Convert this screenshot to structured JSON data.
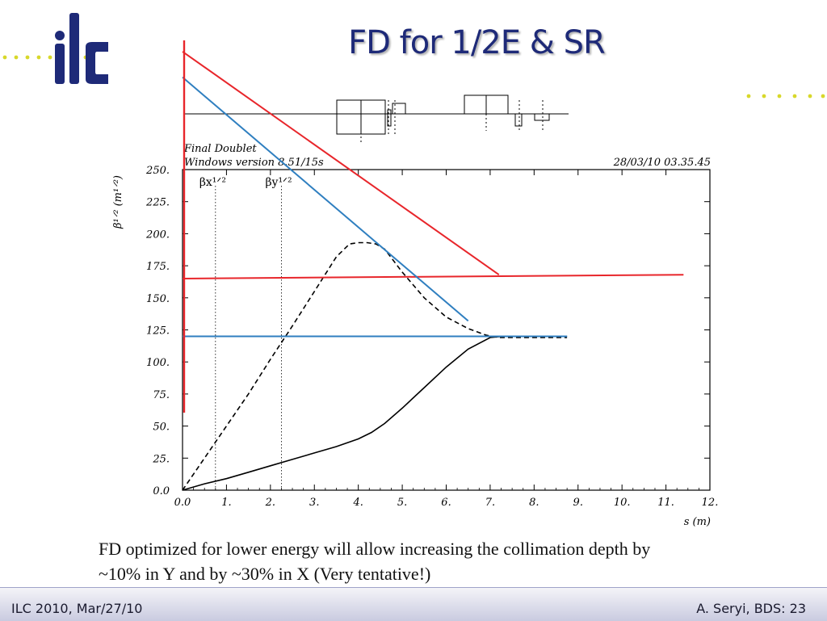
{
  "slide": {
    "title": "FD for 1/2E & SR",
    "caption_line1": "FD optimized for lower energy will allow increasing the collimation depth by",
    "caption_line2": "~10% in Y and by ~30% in X  (Very tentative!)",
    "footer_left": "ILC 2010, Mar/27/10",
    "footer_right": "A. Seryi, BDS: 23",
    "logo_text": "ilc",
    "colors": {
      "title": "#1e2a78",
      "red": "#e8262b",
      "blue": "#2f7fc0",
      "dots": "#d8d82a"
    }
  },
  "chart_data": {
    "type": "line",
    "header_left_line1": "Final Doublet",
    "header_left_line2": "Windows version 8.51/15s",
    "header_right": "28/03/10  03.35.45",
    "xlabel": "s (m)",
    "ylabel": "β¹ᐟ² (m¹ᐟ²)",
    "xlim": [
      0,
      12
    ],
    "ylim": [
      0,
      250
    ],
    "xticks": [
      0,
      1,
      2,
      3,
      4,
      5,
      6,
      7,
      8,
      9,
      10,
      11,
      12
    ],
    "xtick_labels": [
      "0.0",
      "1.",
      "2.",
      "3.",
      "4.",
      "5.",
      "6.",
      "7.",
      "8.",
      "9.",
      "10.",
      "11.",
      "12."
    ],
    "yticks": [
      0,
      25,
      50,
      75,
      100,
      125,
      150,
      175,
      200,
      225,
      250
    ],
    "ytick_labels": [
      "0.0",
      "25.",
      "50.",
      "75.",
      "100.",
      "125.",
      "150.",
      "175.",
      "200.",
      "225.",
      "250."
    ],
    "markers": [
      {
        "label": "βx¹ᐟ²",
        "x": 0.75
      },
      {
        "label": "βy¹ᐟ²",
        "x": 2.25
      }
    ],
    "series": [
      {
        "name": "βx¹ᐟ²",
        "style": "solid",
        "x": [
          0,
          0.5,
          1,
          1.5,
          2,
          2.5,
          3,
          3.5,
          4,
          4.3,
          4.6,
          5,
          5.5,
          6,
          6.5,
          7,
          7.3,
          8,
          8.75
        ],
        "values": [
          0,
          5,
          9,
          14,
          19,
          24,
          29,
          34,
          40,
          45,
          52,
          64,
          80,
          96,
          110,
          119,
          120,
          120,
          120
        ]
      },
      {
        "name": "βy¹ᐟ²",
        "style": "dashed",
        "x": [
          0,
          0.5,
          1,
          1.5,
          2,
          2.5,
          3,
          3.5,
          3.8,
          4,
          4.2,
          4.4,
          4.6,
          5,
          5.5,
          6,
          6.5,
          6.9,
          7.2,
          8,
          8.75
        ],
        "values": [
          0,
          25,
          50,
          75,
          102,
          128,
          155,
          182,
          192,
          193,
          193,
          192,
          188,
          170,
          150,
          135,
          126,
          121,
          119,
          119,
          119
        ]
      }
    ],
    "overlay_lines": [
      {
        "color": "red",
        "x": [
          0,
          7.2
        ],
        "values": [
          342,
          168
        ]
      },
      {
        "color": "red",
        "x": [
          0,
          11.4
        ],
        "values": [
          165,
          168
        ]
      },
      {
        "color": "blue",
        "x": [
          0,
          6.5
        ],
        "values": [
          322,
          132
        ]
      },
      {
        "color": "blue",
        "x": [
          0,
          8.75
        ],
        "values": [
          120,
          120
        ]
      }
    ]
  }
}
